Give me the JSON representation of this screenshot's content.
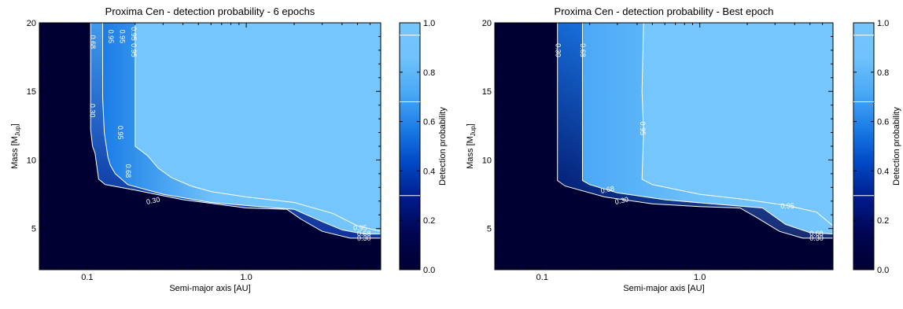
{
  "colors": {
    "background": "#ffffff",
    "colormap": [
      "#000033",
      "#000550",
      "#001a8a",
      "#0047c4",
      "#1a7ce6",
      "#4aa8f5",
      "#6fc2fb",
      "#74c6fc"
    ],
    "contour": "#ffffff"
  },
  "colorbar": {
    "label": "Detection probability",
    "ticks": [
      "0.0",
      "0.2",
      "0.4",
      "0.6",
      "0.8",
      "1.0"
    ],
    "contour_levels": [
      0.3,
      0.68,
      0.95
    ]
  },
  "chart_data": [
    {
      "type": "heatmap",
      "title": "Proxima Cen - detection probability - 6 epochs",
      "xlabel": "Semi-major axis [AU]",
      "ylabel_main": "Mass [M",
      "ylabel_sub": "Jup",
      "ylabel_end": "]",
      "x_scale": "log",
      "xlim": [
        0.05,
        7
      ],
      "ylim": [
        2,
        20
      ],
      "xticks": [
        {
          "v": 0.1,
          "label": "0.1"
        },
        {
          "v": 1.0,
          "label": "1.0"
        }
      ],
      "yticks": [
        {
          "v": 5,
          "label": "5"
        },
        {
          "v": 10,
          "label": "10"
        },
        {
          "v": 15,
          "label": "15"
        },
        {
          "v": 20,
          "label": "20"
        }
      ],
      "contours": [
        {
          "level": "0.30",
          "points": [
            [
              0.105,
              20
            ],
            [
              0.105,
              12.2
            ],
            [
              0.108,
              11.0
            ],
            [
              0.112,
              10.5
            ],
            [
              0.115,
              9.5
            ],
            [
              0.118,
              8.6
            ],
            [
              0.13,
              8.2
            ],
            [
              0.2,
              7.8
            ],
            [
              0.4,
              7.1
            ],
            [
              1.0,
              6.5
            ],
            [
              1.8,
              6.4
            ],
            [
              2.2,
              5.7
            ],
            [
              3.0,
              4.8
            ],
            [
              4.5,
              4.3
            ],
            [
              7,
              4.3
            ]
          ]
        },
        {
          "level": "0.68",
          "points": [
            [
              0.125,
              20
            ],
            [
              0.125,
              14.5
            ],
            [
              0.128,
              12.0
            ],
            [
              0.135,
              10.2
            ],
            [
              0.14,
              9.6
            ],
            [
              0.15,
              9.0
            ],
            [
              0.18,
              8.2
            ],
            [
              0.3,
              7.5
            ],
            [
              0.6,
              6.9
            ],
            [
              1.2,
              6.6
            ],
            [
              2.0,
              6.4
            ],
            [
              3.0,
              5.5
            ],
            [
              4.0,
              4.9
            ],
            [
              5.5,
              4.6
            ],
            [
              7,
              4.6
            ]
          ]
        },
        {
          "level": "0.95",
          "points": [
            [
              0.2,
              20
            ],
            [
              0.2,
              11.0
            ],
            [
              0.24,
              10.3
            ],
            [
              0.28,
              9.4
            ],
            [
              0.34,
              8.7
            ],
            [
              0.45,
              8.1
            ],
            [
              0.6,
              7.7
            ],
            [
              1.0,
              7.3
            ],
            [
              2.0,
              6.9
            ],
            [
              3.5,
              6.1
            ],
            [
              5.0,
              5.2
            ],
            [
              7,
              4.8
            ]
          ]
        }
      ],
      "contour_labels": [
        {
          "text": "0.30",
          "x": 0.107,
          "y": 13.6
        },
        {
          "text": "0.30",
          "x": 0.26,
          "y": 7.0
        },
        {
          "text": "0.30",
          "x": 5.5,
          "y": 4.25
        },
        {
          "text": "0.68",
          "x": 0.108,
          "y": 18.6
        },
        {
          "text": "0.68",
          "x": 0.18,
          "y": 9.2
        },
        {
          "text": "0.68",
          "x": 5.5,
          "y": 4.6
        },
        {
          "text": "0.95",
          "x": 0.14,
          "y": 19.0
        },
        {
          "text": "0.95",
          "x": 0.165,
          "y": 19.0
        },
        {
          "text": "0.95",
          "x": 0.195,
          "y": 19.2
        },
        {
          "text": "0.95",
          "x": 0.195,
          "y": 18.0
        },
        {
          "text": "0.95",
          "x": 0.16,
          "y": 12.0
        },
        {
          "text": "0.95",
          "x": 5.2,
          "y": 5.0
        }
      ]
    },
    {
      "type": "heatmap",
      "title": "Proxima Cen - detection probability - Best epoch",
      "xlabel": "Semi-major axis [AU]",
      "ylabel_main": "Mass [M",
      "ylabel_sub": "Jup",
      "ylabel_end": "]",
      "x_scale": "log",
      "xlim": [
        0.05,
        7
      ],
      "ylim": [
        2,
        20
      ],
      "xticks": [
        {
          "v": 0.1,
          "label": "0.1"
        },
        {
          "v": 1.0,
          "label": "1.0"
        }
      ],
      "yticks": [
        {
          "v": 5,
          "label": "5"
        },
        {
          "v": 10,
          "label": "10"
        },
        {
          "v": 15,
          "label": "15"
        },
        {
          "v": 20,
          "label": "20"
        }
      ],
      "contours": [
        {
          "level": "0.30",
          "points": [
            [
              0.125,
              20
            ],
            [
              0.125,
              8.5
            ],
            [
              0.14,
              8.1
            ],
            [
              0.25,
              7.3
            ],
            [
              0.5,
              6.8
            ],
            [
              1.0,
              6.6
            ],
            [
              1.8,
              6.5
            ],
            [
              2.3,
              5.8
            ],
            [
              3.2,
              4.8
            ],
            [
              4.5,
              4.3
            ],
            [
              7,
              4.3
            ]
          ]
        },
        {
          "level": "0.68",
          "points": [
            [
              0.18,
              20
            ],
            [
              0.18,
              8.5
            ],
            [
              0.2,
              8.2
            ],
            [
              0.3,
              7.6
            ],
            [
              0.6,
              7.1
            ],
            [
              1.2,
              6.8
            ],
            [
              2.5,
              6.5
            ],
            [
              3.5,
              5.3
            ],
            [
              5.0,
              4.7
            ],
            [
              7,
              4.6
            ]
          ]
        },
        {
          "level": "0.95",
          "points": [
            [
              0.44,
              20
            ],
            [
              0.43,
              15.0
            ],
            [
              0.44,
              12.0
            ],
            [
              0.43,
              8.6
            ],
            [
              0.5,
              8.2
            ],
            [
              1.0,
              7.5
            ],
            [
              2.0,
              7.1
            ],
            [
              3.5,
              6.7
            ],
            [
              5.5,
              6.2
            ],
            [
              7,
              5.2
            ]
          ]
        }
      ],
      "contour_labels": [
        {
          "text": "0.30",
          "x": 0.125,
          "y": 18.0
        },
        {
          "text": "0.30",
          "x": 0.32,
          "y": 7.0
        },
        {
          "text": "0.30",
          "x": 5.5,
          "y": 4.25
        },
        {
          "text": "0.68",
          "x": 0.18,
          "y": 18.0
        },
        {
          "text": "0.68",
          "x": 0.26,
          "y": 7.8
        },
        {
          "text": "0.68",
          "x": 5.5,
          "y": 4.6
        },
        {
          "text": "0.95",
          "x": 0.43,
          "y": 12.3
        },
        {
          "text": "0.95",
          "x": 3.6,
          "y": 6.6
        }
      ]
    }
  ]
}
